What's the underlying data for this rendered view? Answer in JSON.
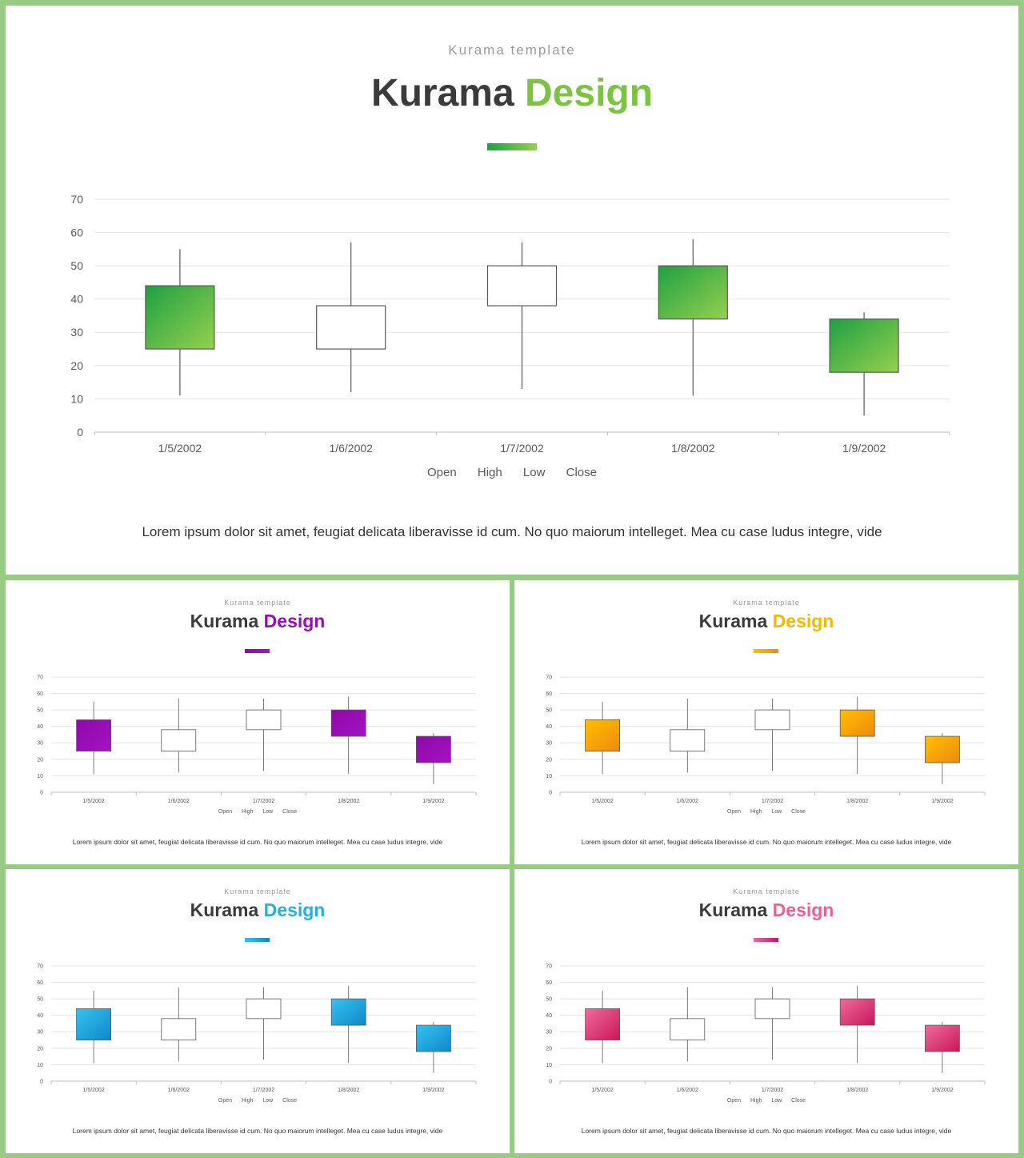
{
  "slides": {
    "main": {
      "subtitle": "Kurama template",
      "title_word1": "Kurama",
      "title_word2": "Design",
      "accent_color": "#7cc340",
      "gradient_from": "#1fa043",
      "gradient_to": "#95d04e",
      "caption": "Lorem ipsum dolor sit amet, feugiat delicata liberavisse id cum. No quo maiorum intelleget.  Mea cu case ludus integre, vide"
    },
    "purple": {
      "subtitle": "Kurama template",
      "title_word1": "Kurama",
      "title_word2": "Design",
      "accent_color": "#9a0bb8",
      "gradient_from": "#8e0aa8",
      "gradient_to": "#a313c2",
      "caption": "Lorem ipsum dolor sit amet, feugiat delicata liberavisse id cum. No quo maiorum intelleget.  Mea cu case ludus integre, vide"
    },
    "orange": {
      "subtitle": "Kurama template",
      "title_word1": "Kurama",
      "title_word2": "Design",
      "accent_color": "#f5b800",
      "gradient_from": "#ffbf00",
      "gradient_to": "#ee8a10",
      "caption": "Lorem ipsum dolor sit amet, feugiat delicata liberavisse id cum. No quo maiorum intelleget.  Mea cu case ludus integre, vide"
    },
    "blue": {
      "subtitle": "Kurama template",
      "title_word1": "Kurama",
      "title_word2": "Design",
      "accent_color": "#22aee8",
      "gradient_from": "#35c2f0",
      "gradient_to": "#0f88c9",
      "caption": "Lorem ipsum dolor sit amet, feugiat delicata liberavisse id cum. No quo maiorum intelleget.  Mea cu case ludus integre, vide"
    },
    "pink": {
      "subtitle": "Kurama template",
      "title_word1": "Kurama",
      "title_word2": "Design",
      "accent_color": "#ee5f95",
      "gradient_from": "#f06a9b",
      "gradient_to": "#c9175a",
      "caption": "Lorem ipsum dolor sit amet, feugiat delicata liberavisse id cum. No quo maiorum intelleget.  Mea cu case ludus integre, vide"
    }
  },
  "legend": [
    "Open",
    "High",
    "Low",
    "Close"
  ],
  "chart_data": {
    "type": "candlestick",
    "categories": [
      "1/5/2002",
      "1/6/2002",
      "1/7/2002",
      "1/8/2002",
      "1/9/2002"
    ],
    "series": [
      {
        "name": "Open",
        "values": [
          44,
          25,
          38,
          50,
          34
        ]
      },
      {
        "name": "High",
        "values": [
          55,
          57,
          57,
          58,
          36
        ]
      },
      {
        "name": "Low",
        "values": [
          11,
          12,
          13,
          11,
          5
        ]
      },
      {
        "name": "Close",
        "values": [
          25,
          38,
          50,
          34,
          18
        ]
      }
    ],
    "ylim": [
      0,
      70
    ],
    "yticks": [
      0,
      10,
      20,
      30,
      40,
      50,
      60,
      70
    ],
    "grid": true,
    "legend_position": "bottom"
  }
}
